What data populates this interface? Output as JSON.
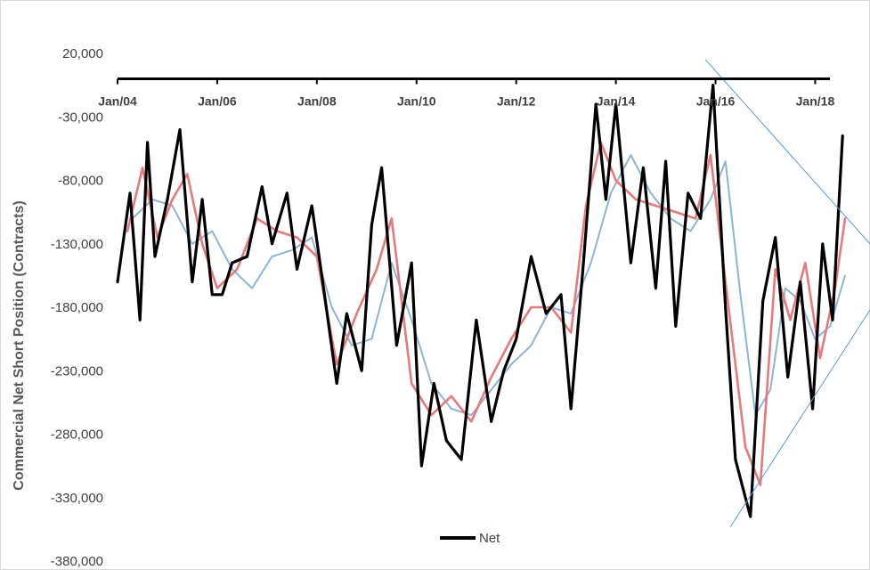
{
  "chart_data": {
    "type": "line",
    "title": "",
    "xlabel": "",
    "ylabel": "Commercial Net Short  Position (Contracts)",
    "xlim": [
      2004.0,
      2019.1
    ],
    "ylim": [
      -380000,
      20000
    ],
    "y_ticks": [
      20000,
      -30000,
      -80000,
      -130000,
      -180000,
      -230000,
      -280000,
      -330000,
      -380000
    ],
    "y_tick_labels": [
      "20,000",
      "-30,000",
      "-80,000",
      "-130,000",
      "-180,000",
      "-230,000",
      "-280,000",
      "-330,000",
      "-380,000"
    ],
    "x_ticks": [
      2004,
      2006,
      2008,
      2010,
      2012,
      2014,
      2016,
      2018
    ],
    "x_tick_labels": [
      "Jan/04",
      "Jan/06",
      "Jan/08",
      "Jan/10",
      "Jan/12",
      "Jan/14",
      "Jan/16",
      "Jan/18"
    ],
    "grid": false,
    "legend": {
      "position": "bottom",
      "entries": [
        "Net"
      ]
    },
    "colors": {
      "net": "#000000",
      "ma_short": "#e8797a",
      "ma_long": "#8db4d3",
      "trendline": "#5b9bd5",
      "axis": "#000000"
    },
    "series": [
      {
        "name": "Net",
        "x": [
          2004.0,
          2004.25,
          2004.45,
          2004.6,
          2004.75,
          2005.0,
          2005.25,
          2005.5,
          2005.7,
          2005.9,
          2006.1,
          2006.3,
          2006.6,
          2006.9,
          2007.1,
          2007.4,
          2007.6,
          2007.9,
          2008.1,
          2008.4,
          2008.6,
          2008.9,
          2009.1,
          2009.3,
          2009.6,
          2009.9,
          2010.1,
          2010.35,
          2010.6,
          2010.9,
          2011.2,
          2011.5,
          2011.75,
          2012.0,
          2012.3,
          2012.6,
          2012.9,
          2013.1,
          2013.35,
          2013.6,
          2013.8,
          2014.0,
          2014.3,
          2014.55,
          2014.8,
          2015.0,
          2015.2,
          2015.45,
          2015.7,
          2015.95,
          2016.2,
          2016.4,
          2016.7,
          2016.95,
          2017.2,
          2017.45,
          2017.7,
          2017.95,
          2018.15,
          2018.35,
          2018.55
        ],
        "values": [
          -160000,
          -90000,
          -190000,
          -50000,
          -140000,
          -95000,
          -40000,
          -160000,
          -95000,
          -170000,
          -170000,
          -145000,
          -140000,
          -85000,
          -130000,
          -90000,
          -150000,
          -100000,
          -155000,
          -240000,
          -185000,
          -230000,
          -115000,
          -70000,
          -210000,
          -145000,
          -305000,
          -240000,
          -285000,
          -300000,
          -190000,
          -270000,
          -230000,
          -205000,
          -140000,
          -185000,
          -170000,
          -260000,
          -145000,
          -20000,
          -95000,
          -20000,
          -145000,
          -70000,
          -165000,
          -65000,
          -195000,
          -90000,
          -110000,
          -5000,
          -180000,
          -300000,
          -345000,
          -175000,
          -125000,
          -235000,
          -160000,
          -260000,
          -130000,
          -190000,
          -45000
        ]
      },
      {
        "name": "",
        "x": [
          2004.2,
          2004.5,
          2004.8,
          2005.1,
          2005.4,
          2005.7,
          2006.0,
          2006.4,
          2006.8,
          2007.2,
          2007.6,
          2008.0,
          2008.4,
          2008.8,
          2009.2,
          2009.5,
          2009.9,
          2010.3,
          2010.7,
          2011.1,
          2011.5,
          2011.9,
          2012.3,
          2012.7,
          2013.1,
          2013.4,
          2013.7,
          2014.0,
          2014.4,
          2014.8,
          2015.2,
          2015.6,
          2015.9,
          2016.2,
          2016.6,
          2016.9,
          2017.2,
          2017.5,
          2017.8,
          2018.1,
          2018.4,
          2018.6
        ],
        "values": [
          -120000,
          -70000,
          -125000,
          -95000,
          -75000,
          -130000,
          -165000,
          -150000,
          -110000,
          -120000,
          -125000,
          -140000,
          -225000,
          -185000,
          -150000,
          -110000,
          -240000,
          -265000,
          -250000,
          -270000,
          -235000,
          -205000,
          -180000,
          -180000,
          -200000,
          -100000,
          -50000,
          -80000,
          -95000,
          -100000,
          -105000,
          -110000,
          -60000,
          -160000,
          -290000,
          -320000,
          -150000,
          -190000,
          -145000,
          -220000,
          -165000,
          -110000
        ]
      },
      {
        "name": "",
        "x": [
          2004.3,
          2004.7,
          2005.1,
          2005.5,
          2005.9,
          2006.3,
          2006.7,
          2007.1,
          2007.5,
          2007.9,
          2008.3,
          2008.7,
          2009.1,
          2009.5,
          2009.9,
          2010.3,
          2010.7,
          2011.1,
          2011.5,
          2011.9,
          2012.3,
          2012.7,
          2013.1,
          2013.5,
          2013.9,
          2014.3,
          2014.7,
          2015.1,
          2015.5,
          2015.9,
          2016.2,
          2016.5,
          2016.8,
          2017.1,
          2017.4,
          2017.7,
          2018.0,
          2018.3,
          2018.6
        ],
        "values": [
          -110000,
          -95000,
          -100000,
          -130000,
          -120000,
          -150000,
          -165000,
          -140000,
          -135000,
          -125000,
          -180000,
          -210000,
          -205000,
          -145000,
          -190000,
          -240000,
          -260000,
          -265000,
          -245000,
          -225000,
          -210000,
          -180000,
          -185000,
          -145000,
          -90000,
          -60000,
          -90000,
          -110000,
          -120000,
          -95000,
          -65000,
          -170000,
          -265000,
          -245000,
          -165000,
          -175000,
          -205000,
          -195000,
          -155000
        ]
      },
      {
        "name": "",
        "x": [
          2015.8,
          2019.1
        ],
        "values": [
          15000,
          -130000
        ]
      },
      {
        "name": "",
        "x": [
          2016.3,
          2019.1
        ],
        "values": [
          -353000,
          -182000
        ]
      }
    ]
  }
}
